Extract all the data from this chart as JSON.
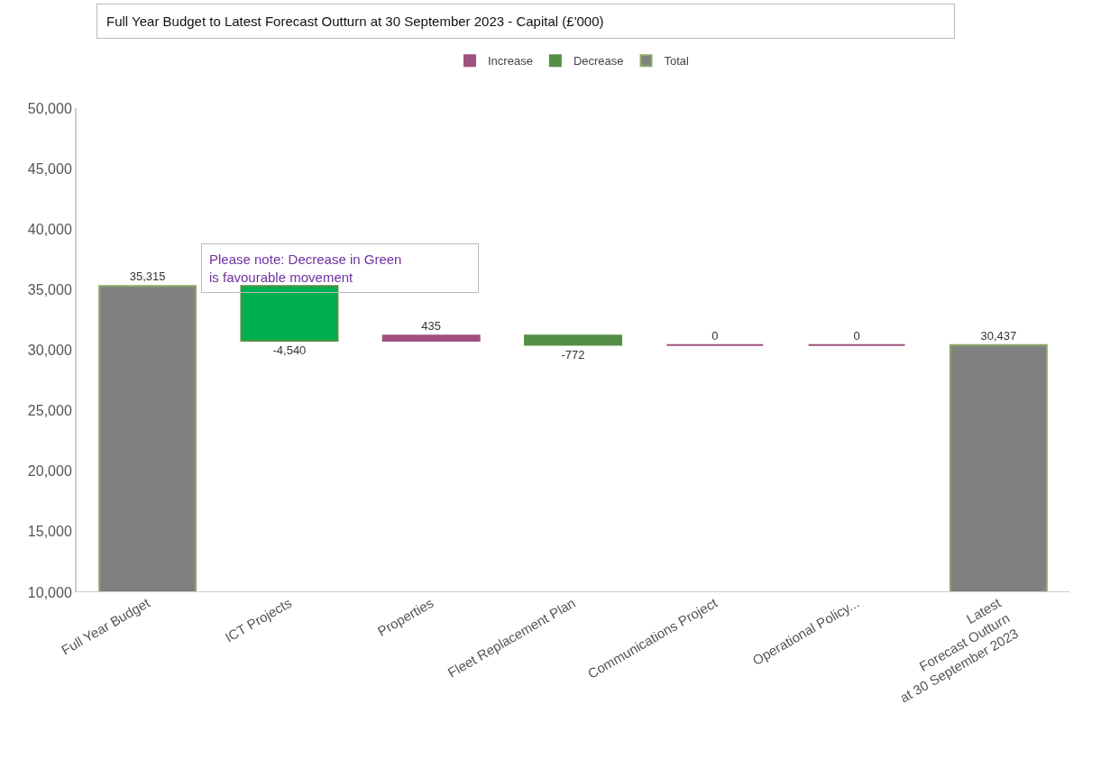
{
  "chart_data": {
    "type": "bar",
    "title": "Full Year Budget to Latest Forecast Outturn at 30 September 2023 - Capital (£'000)",
    "categories": [
      "Full Year Budget",
      "ICT Projects",
      "Properties",
      "Fleet Replacement Plan",
      "Communications Project",
      "Operational Policy...",
      "Latest\nForecast Outturn\nat 30 September 2023"
    ],
    "series": [
      {
        "name": "Increase",
        "color": "#a0527f",
        "values": [
          null,
          null,
          435,
          null,
          0,
          0,
          null
        ],
        "value_labels": [
          null,
          null,
          "435",
          null,
          "0",
          "0",
          null
        ],
        "base": [
          null,
          null,
          30775,
          null,
          30437,
          30437,
          null
        ],
        "colors": [
          null,
          null,
          "#9e4f80",
          null,
          "#b05a8a",
          "#b05a8a",
          null
        ]
      },
      {
        "name": "Decrease",
        "color": "#548f45",
        "values": [
          null,
          -4540,
          null,
          -772,
          null,
          null,
          null
        ],
        "value_labels": [
          null,
          "-4,540",
          null,
          "-772",
          null,
          null,
          null
        ],
        "base": [
          null,
          35315,
          null,
          31210,
          null,
          null,
          null
        ],
        "colors": [
          null,
          "#00b050",
          null,
          null,
          null,
          null,
          null
        ]
      },
      {
        "name": "Total",
        "color": "#8ea866",
        "values": [
          35315,
          null,
          null,
          null,
          null,
          null,
          30437
        ],
        "value_labels": [
          "35,315",
          null,
          null,
          null,
          null,
          null,
          "30,437"
        ],
        "colors": [
          "#808080",
          null,
          null,
          null,
          null,
          null,
          "#808080"
        ]
      }
    ],
    "ylim": [
      10000,
      50000
    ],
    "yticks": [
      {
        "value": 10000,
        "label": "10,000"
      },
      {
        "value": 15000,
        "label": "15,000"
      },
      {
        "value": 20000,
        "label": "20,000"
      },
      {
        "value": 25000,
        "label": "25,000"
      },
      {
        "value": 30000,
        "label": "30,000"
      },
      {
        "value": 35000,
        "label": "35,000"
      },
      {
        "value": 40000,
        "label": "40,000"
      },
      {
        "value": 45000,
        "label": "45,000"
      },
      {
        "value": 50000,
        "label": "50,000"
      }
    ],
    "grid": false,
    "legend": "top",
    "annotations": [
      "Please note: Decrease in Green\nis favourable movement"
    ]
  }
}
